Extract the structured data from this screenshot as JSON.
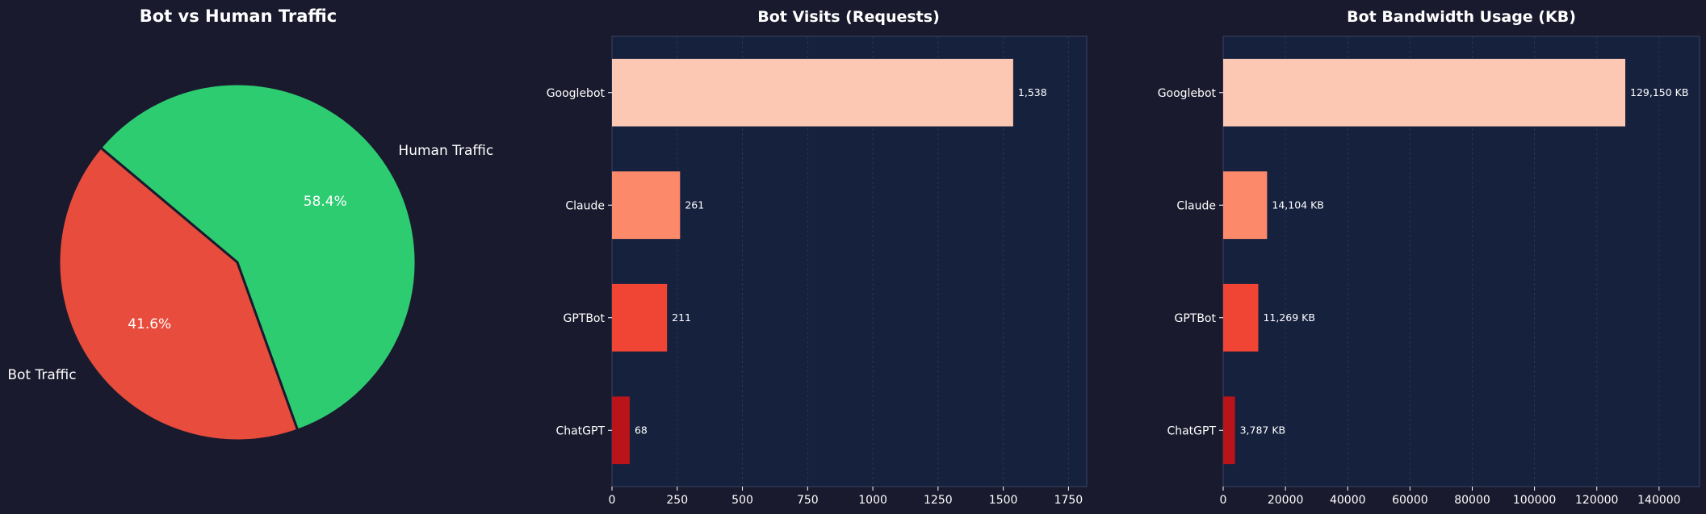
{
  "colors": {
    "background": "#1a1a2e",
    "plot_background": "#16213e",
    "text": "#ffffff",
    "axis": "#3a4262",
    "grid": "#2a3452"
  },
  "chart_data": [
    {
      "type": "pie",
      "title": "Bot vs Human Traffic",
      "labels": [
        "Bot Traffic",
        "Human Traffic"
      ],
      "values": [
        41.6,
        58.4
      ],
      "value_labels": [
        "41.6%",
        "58.4%"
      ],
      "colors": [
        "#e74c3c",
        "#2ecc71"
      ],
      "edge_color": "#1a1a2e",
      "legend": "none",
      "start_angle_deg": 140
    },
    {
      "type": "bar",
      "orientation": "horizontal",
      "title": "Bot Visits (Requests)",
      "categories": [
        "Googlebot",
        "Claude",
        "GPTBot",
        "ChatGPT"
      ],
      "values": [
        1538,
        261,
        211,
        68
      ],
      "value_labels": [
        "1,538",
        "261",
        "211",
        "68"
      ],
      "colors": [
        "#fcc8b4",
        "#fc8a6a",
        "#f04535",
        "#b81419"
      ],
      "xlim": [
        0,
        1820
      ],
      "xticks": [
        0,
        250,
        500,
        750,
        1000,
        1250,
        1500,
        1750
      ],
      "xtick_labels": [
        "0",
        "250",
        "500",
        "750",
        "1000",
        "1250",
        "1500",
        "1750"
      ],
      "grid": true,
      "xlabel": "",
      "ylabel": ""
    },
    {
      "type": "bar",
      "orientation": "horizontal",
      "title": "Bot Bandwidth Usage (KB)",
      "categories": [
        "Googlebot",
        "Claude",
        "GPTBot",
        "ChatGPT"
      ],
      "values": [
        129150,
        14104,
        11269,
        3787
      ],
      "value_labels": [
        "129,150 KB",
        "14,104 KB",
        "11,269 KB",
        "3,787 KB"
      ],
      "colors": [
        "#fcc8b4",
        "#fc8a6a",
        "#f04535",
        "#b81419"
      ],
      "xlim": [
        0,
        153000
      ],
      "xticks": [
        0,
        20000,
        40000,
        60000,
        80000,
        100000,
        120000,
        140000
      ],
      "xtick_labels": [
        "0",
        "20000",
        "40000",
        "60000",
        "80000",
        "100000",
        "120000",
        "140000"
      ],
      "grid": true,
      "xlabel": "",
      "ylabel": ""
    }
  ]
}
